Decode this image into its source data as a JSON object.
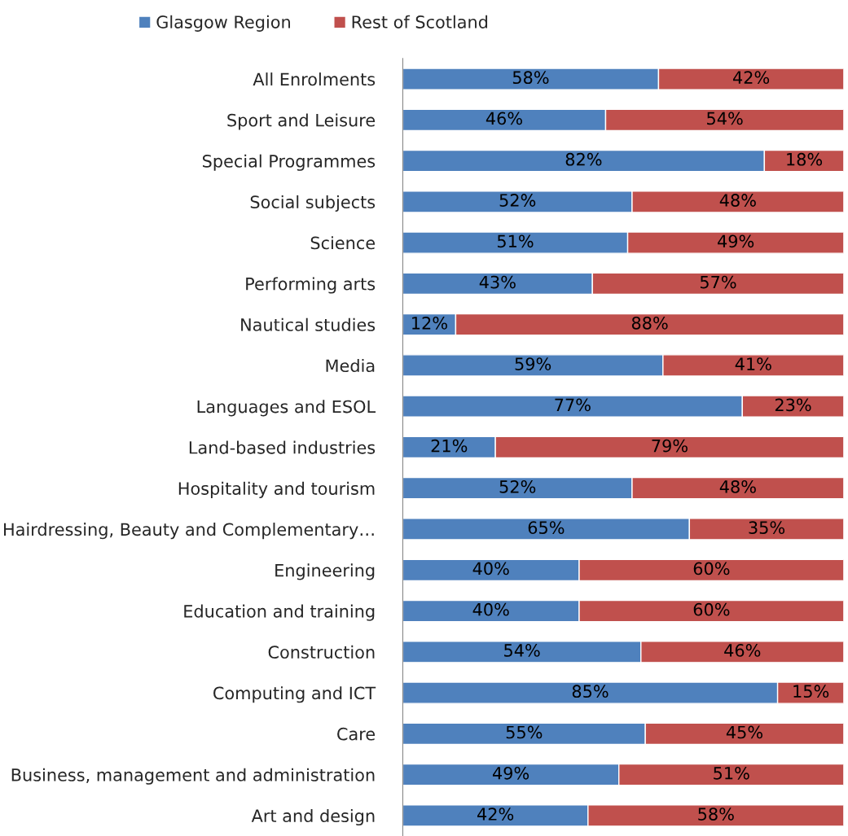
{
  "chart_data": {
    "type": "bar",
    "orientation": "horizontal",
    "stacked": true,
    "legend": "top",
    "categories": [
      "All Enrolments",
      "Sport and Leisure",
      "Special Programmes",
      "Social subjects",
      "Science",
      "Performing arts",
      "Nautical studies",
      "Media",
      "Languages and ESOL",
      "Land-based industries",
      "Hospitality and tourism",
      "Hairdressing, Beauty and Complementary…",
      "Engineering",
      "Education and training",
      "Construction",
      "Computing and ICT",
      "Care",
      "Business, management and administration",
      "Art and design"
    ],
    "series": [
      {
        "name": "Glasgow Region",
        "color": "#4f81bd",
        "values": [
          58,
          46,
          82,
          52,
          51,
          43,
          12,
          59,
          77,
          21,
          52,
          65,
          40,
          40,
          54,
          85,
          55,
          49,
          42
        ],
        "value_labels": [
          "58%",
          "46%",
          "82%",
          "52%",
          "51%",
          "43%",
          "12%",
          "59%",
          "77%",
          "21%",
          "52%",
          "65%",
          "40%",
          "40%",
          "54%",
          "85%",
          "55%",
          "49%",
          "42%"
        ]
      },
      {
        "name": "Rest of Scotland",
        "color": "#c0504d",
        "values": [
          42,
          54,
          18,
          48,
          49,
          57,
          88,
          41,
          23,
          79,
          48,
          35,
          60,
          60,
          46,
          15,
          45,
          51,
          58
        ],
        "value_labels": [
          "42%",
          "54%",
          "18%",
          "48%",
          "49%",
          "57%",
          "88%",
          "41%",
          "23%",
          "79%",
          "48%",
          "35%",
          "60%",
          "60%",
          "46%",
          "15%",
          "45%",
          "51%",
          "58%"
        ]
      }
    ]
  }
}
